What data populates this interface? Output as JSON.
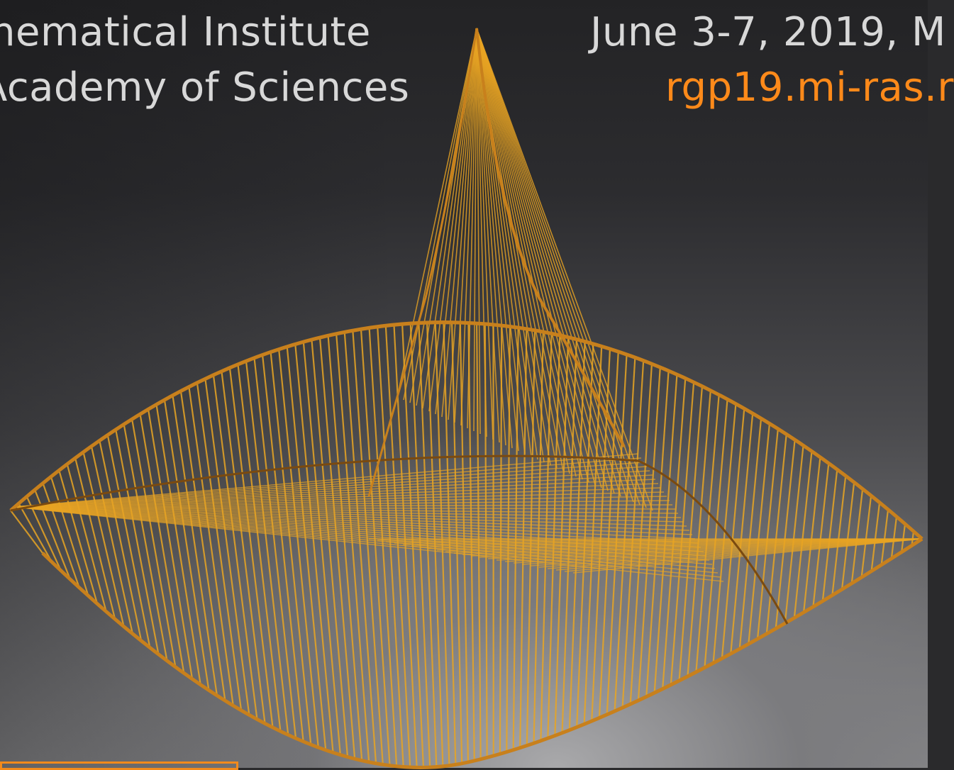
{
  "header": {
    "institute_line_1": "hematical Institute",
    "institute_line_2": "Academy of Sciences",
    "dates": "June 3-7, 2019, M",
    "website": "rgp19.mi-ras.r"
  },
  "colors": {
    "accent": "#ff8a1a",
    "text": "#d8d8d8",
    "sculpture_string": "#e8a423",
    "sculpture_frame": "#c8801c",
    "background_top": "#232325",
    "background_bottom": "#9a9a9c"
  },
  "image": {
    "subject": "string-art-sculpture"
  }
}
